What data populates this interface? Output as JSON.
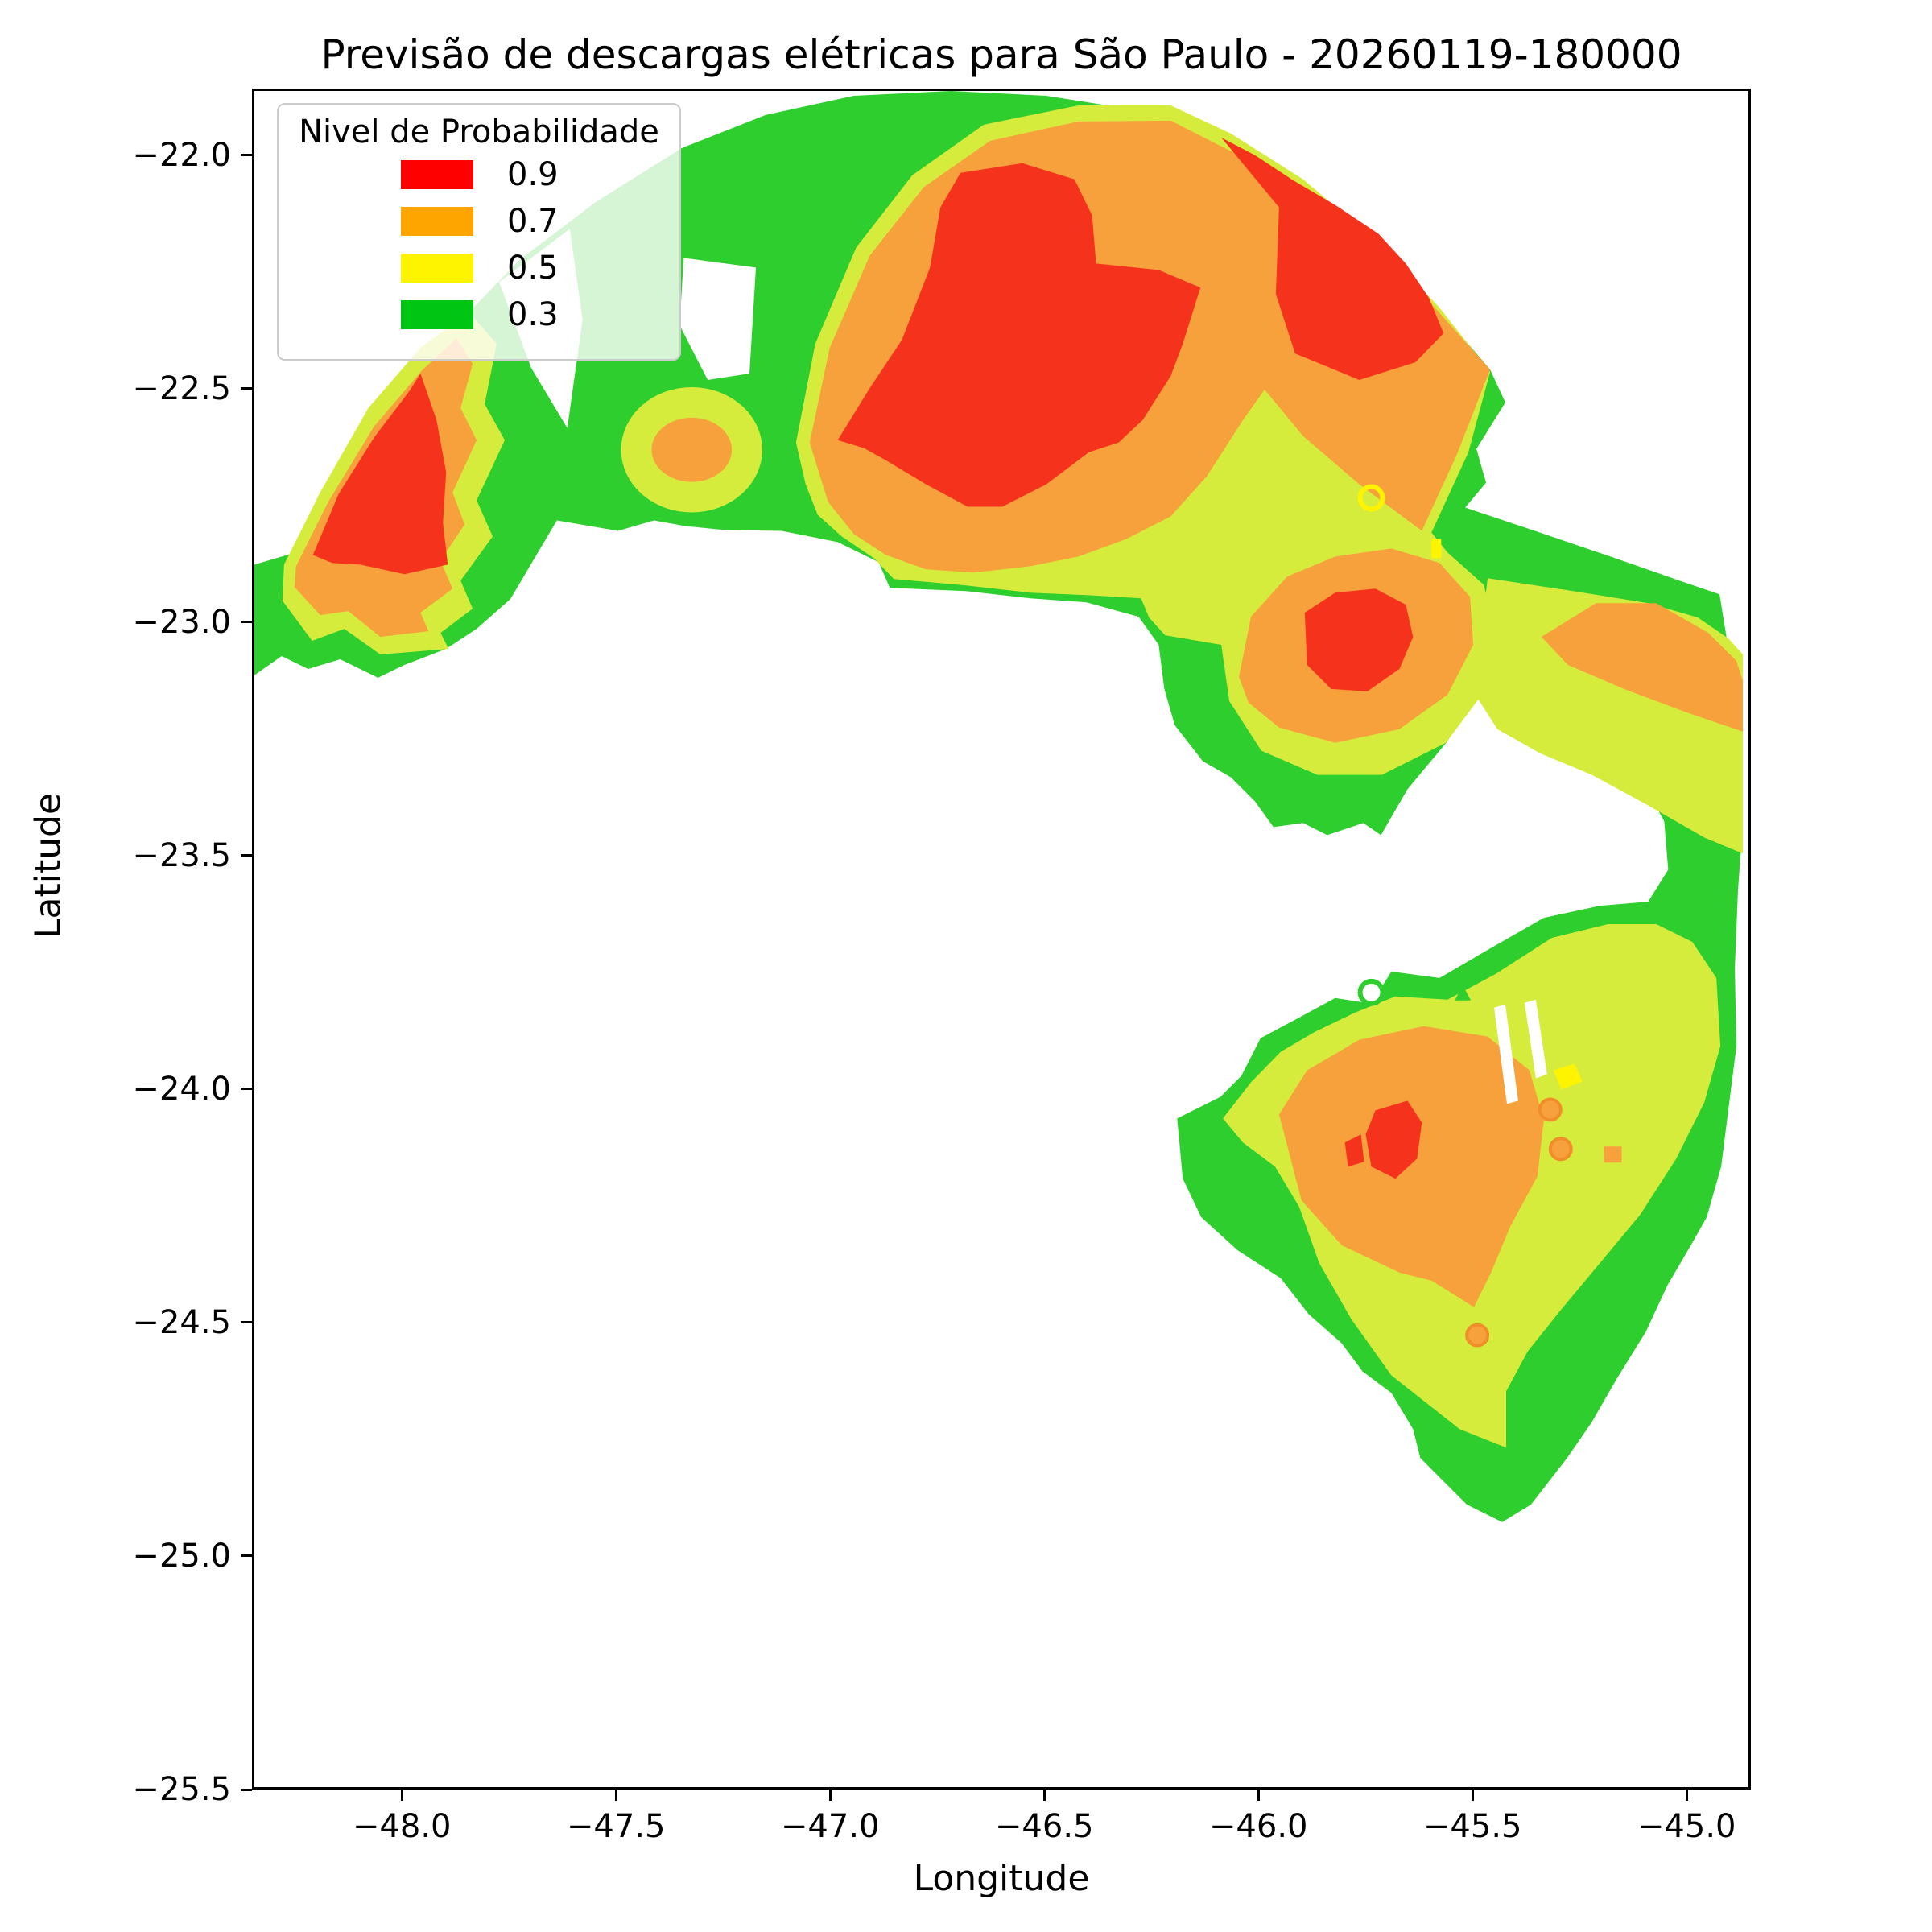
{
  "title": "Previsão de descargas elétricas para São Paulo - 20260119-180000",
  "axes": {
    "xlabel": "Longitude",
    "ylabel": "Latitude",
    "x_tick_labels": [
      "−48.0",
      "−47.5",
      "−47.0",
      "−46.5",
      "−46.0",
      "−45.5",
      "−45.0"
    ],
    "x_tick_values": [
      -48.0,
      -47.5,
      -47.0,
      -46.5,
      -46.0,
      -45.5,
      -45.0
    ],
    "y_tick_labels": [
      "−22.0",
      "−22.5",
      "−23.0",
      "−23.5",
      "−24.0",
      "−24.5",
      "−25.0",
      "−25.5"
    ],
    "y_tick_values": [
      -22.0,
      -22.5,
      -23.0,
      -23.5,
      -24.0,
      -24.5,
      -25.0,
      -25.5
    ],
    "x_range": [
      -48.35,
      -44.85
    ],
    "y_range": [
      -25.5,
      -21.857
    ]
  },
  "legend": {
    "title": "Nivel de Probabilidade",
    "entries": [
      {
        "label": "0.9",
        "color": "#FF0000"
      },
      {
        "label": "0.7",
        "color": "#FFA500"
      },
      {
        "label": "0.5",
        "color": "#FFF400"
      },
      {
        "label": "0.3",
        "color": "#00C513"
      }
    ]
  },
  "chart_data": {
    "type": "filled_contour_map",
    "title": "Previsão de descargas elétricas para São Paulo - 20260119-180000",
    "xlabel": "Longitude",
    "ylabel": "Latitude",
    "xlim": [
      -48.35,
      -44.85
    ],
    "ylim": [
      -25.5,
      -21.857
    ],
    "grid": false,
    "legend_position": "upper left",
    "probability_levels": [
      0.3,
      0.5,
      0.7,
      0.9
    ],
    "legend_colors": {
      "0.9": "#FF0000",
      "0.7": "#FFA500",
      "0.5": "#FFF400",
      "0.3": "#00C513"
    },
    "map_fill_colors": {
      "0.3": "#2FCE2F",
      "0.5": "#D6EC3C",
      "0.7": "#F7A13C",
      "0.9": "#F5331D"
    },
    "coverage": "circular radar-range arc, apex near lon -46.7 lat -21.9; data only in north, east and south-east sectors, white elsewhere",
    "high_probability_cores": [
      {
        "name": "northwest core (0.9)",
        "lon": -48.05,
        "lat": -22.71
      },
      {
        "name": "central core (0.9)",
        "lon": -46.59,
        "lat": -22.45
      },
      {
        "name": "northeast core (0.9)",
        "lon": -45.82,
        "lat": -22.2
      },
      {
        "name": "mid-east core (0.9)",
        "lon": -45.76,
        "lat": -23.05
      },
      {
        "name": "southern core (0.9)",
        "lon": -45.69,
        "lat": -24.12
      }
    ],
    "moderate_regions": [
      {
        "name": "small orange cell (0.7)",
        "lon": -47.32,
        "lat": -22.63
      },
      {
        "name": "east band (0.7)",
        "lon": -45.07,
        "lat": -23.1
      },
      {
        "name": "southern cluster (0.7)",
        "lon": -45.55,
        "lat": -24.14
      }
    ]
  }
}
